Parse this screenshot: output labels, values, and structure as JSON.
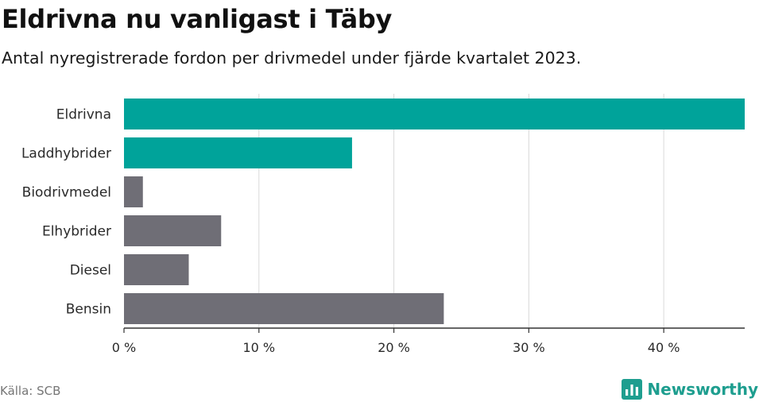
{
  "title": "Eldrivna nu vanligast i Täby",
  "subtitle": "Antal nyregistrerade fordon per drivmedel under fjärde kvartalet 2023.",
  "source": "Källa: SCB",
  "brand": {
    "name": "Newsworthy",
    "logo_icon": "bar-chart-logo-icon"
  },
  "colors": {
    "highlight": "#00a39a",
    "default": "#6f6e76",
    "grid": "#d9d9d9",
    "axis": "#333333"
  },
  "chart_data": {
    "type": "bar",
    "orientation": "horizontal",
    "title": "Eldrivna nu vanligast i Täby",
    "xlabel": "",
    "ylabel": "",
    "categories": [
      "Eldrivna",
      "Laddhybrider",
      "Biodrivmedel",
      "Elhybrider",
      "Diesel",
      "Bensin"
    ],
    "values": [
      46.0,
      16.9,
      1.4,
      7.2,
      4.8,
      23.7
    ],
    "highlighted": [
      true,
      true,
      false,
      false,
      false,
      false
    ],
    "xlim": [
      0,
      46
    ],
    "xticks": [
      0,
      10,
      20,
      30,
      40
    ],
    "xtick_labels": [
      "0 %",
      "10 %",
      "20 %",
      "30 %",
      "40 %"
    ],
    "grid": true
  }
}
